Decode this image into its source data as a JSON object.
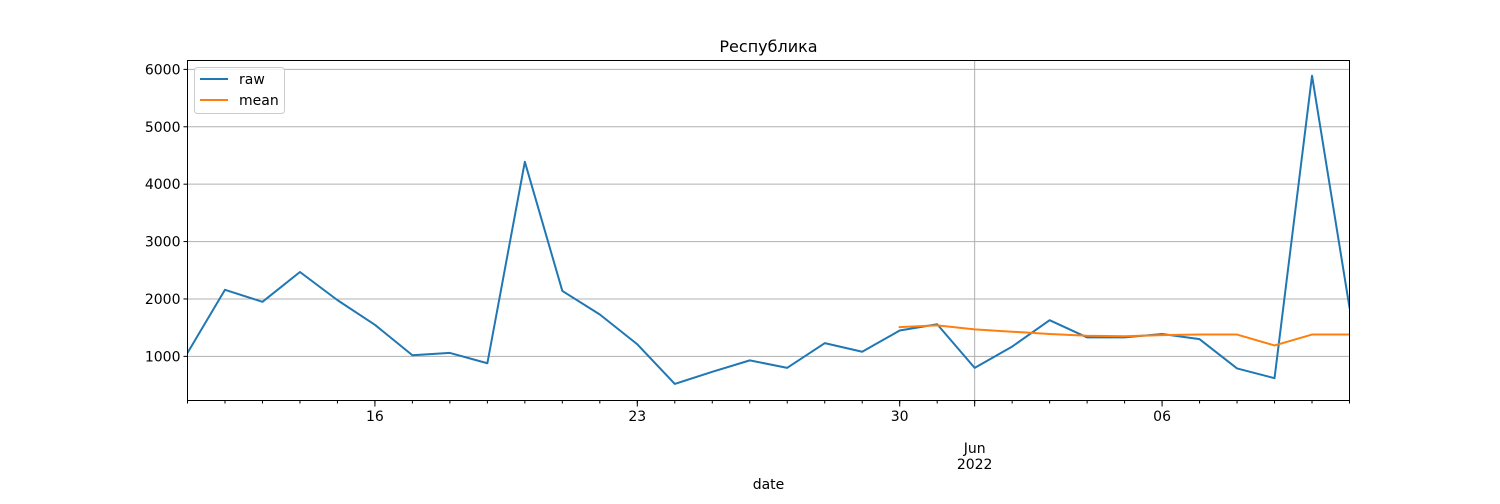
{
  "chart_data": {
    "type": "line",
    "title": "Республика",
    "xlabel": "date",
    "ylabel": "",
    "x": [
      "2022-05-11",
      "2022-05-12",
      "2022-05-13",
      "2022-05-14",
      "2022-05-15",
      "2022-05-16",
      "2022-05-17",
      "2022-05-18",
      "2022-05-19",
      "2022-05-20",
      "2022-05-21",
      "2022-05-22",
      "2022-05-23",
      "2022-05-24",
      "2022-05-25",
      "2022-05-26",
      "2022-05-27",
      "2022-05-28",
      "2022-05-29",
      "2022-05-30",
      "2022-05-31",
      "2022-06-01",
      "2022-06-02",
      "2022-06-03",
      "2022-06-04",
      "2022-06-05",
      "2022-06-06",
      "2022-06-07",
      "2022-06-08",
      "2022-06-09",
      "2022-06-10",
      "2022-06-11"
    ],
    "series": [
      {
        "name": "raw",
        "color": "#1f77b4",
        "values": [
          1060,
          2160,
          1950,
          2470,
          1980,
          1550,
          1020,
          1060,
          880,
          4390,
          2140,
          1730,
          1210,
          520,
          730,
          930,
          800,
          1230,
          1080,
          1450,
          1560,
          800,
          1170,
          1630,
          1330,
          1330,
          1390,
          1300,
          790,
          620,
          5890,
          1850
        ]
      },
      {
        "name": "mean",
        "color": "#ff7f0e",
        "values": [
          null,
          null,
          null,
          null,
          null,
          null,
          null,
          null,
          null,
          null,
          null,
          null,
          null,
          null,
          null,
          null,
          null,
          null,
          null,
          1510,
          1540,
          1470,
          1430,
          1390,
          1360,
          1350,
          1370,
          1380,
          1380,
          1190,
          1380,
          1380
        ]
      }
    ],
    "xlim": [
      "2022-05-11",
      "2022-06-11"
    ],
    "ylim": [
      231,
      6155
    ],
    "yticks": [
      1000,
      2000,
      3000,
      4000,
      5000,
      6000
    ],
    "xticks": [
      {
        "date": "2022-05-16",
        "label": "16",
        "sublabel": ""
      },
      {
        "date": "2022-05-23",
        "label": "23",
        "sublabel": ""
      },
      {
        "date": "2022-05-30",
        "label": "30",
        "sublabel": ""
      },
      {
        "date": "2022-06-01",
        "label": "Jun",
        "sublabel": "2022"
      },
      {
        "date": "2022-06-06",
        "label": "06",
        "sublabel": ""
      }
    ],
    "grid": true,
    "legend": {
      "position": "top-left",
      "entries": [
        "raw",
        "mean"
      ]
    }
  }
}
